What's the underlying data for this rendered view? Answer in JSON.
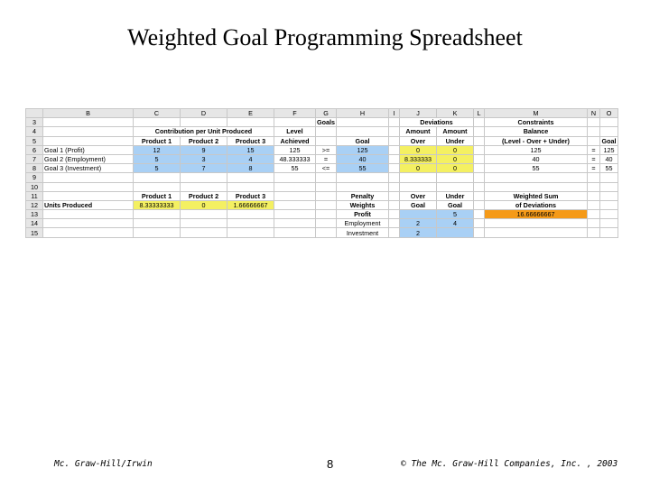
{
  "title": "Weighted Goal Programming Spreadsheet",
  "sheet": {
    "columns": [
      "",
      "B",
      "C",
      "D",
      "E",
      "F",
      "G",
      "H",
      "I",
      "J",
      "K",
      "L",
      "M",
      "N",
      "O"
    ],
    "rows": [
      [
        "3",
        "",
        "",
        "",
        "",
        "",
        "Goals",
        "",
        "",
        "Deviations",
        "",
        "",
        "Constraints",
        "",
        ""
      ],
      [
        "4",
        "",
        "",
        "Contribution per Unit Produced",
        "",
        "Level",
        "",
        "",
        "",
        "Amount",
        "Amount",
        "",
        "Balance",
        "",
        ""
      ],
      [
        "5",
        "",
        "Product 1",
        "Product 2",
        "Product 3",
        "Achieved",
        "",
        "Goal",
        "",
        "Over",
        "Under",
        "",
        "(Level - Over + Under)",
        "",
        "Goal"
      ],
      [
        "6",
        "Goal 1 (Profit)",
        "12",
        "9",
        "15",
        "125",
        ">=",
        "125",
        "",
        "0",
        "0",
        "",
        "125",
        "=",
        "125"
      ],
      [
        "7",
        "Goal 2 (Employment)",
        "5",
        "3",
        "4",
        "48.333333",
        "=",
        "40",
        "",
        "8.333333",
        "0",
        "",
        "40",
        "=",
        "40"
      ],
      [
        "8",
        "Goal 3 (Investment)",
        "5",
        "7",
        "8",
        "55",
        "<=",
        "55",
        "",
        "0",
        "0",
        "",
        "55",
        "=",
        "55"
      ],
      [
        "9",
        "",
        "",
        "",
        "",
        "",
        "",
        "",
        "",
        "",
        "",
        "",
        "",
        "",
        ""
      ],
      [
        "10",
        "",
        "",
        "",
        "",
        "",
        "",
        "",
        "",
        "",
        "",
        "",
        "",
        "",
        ""
      ],
      [
        "11",
        "",
        "Product 1",
        "Product 2",
        "Product 3",
        "",
        "",
        "Penalty",
        "",
        "Over",
        "Under",
        "",
        "Weighted Sum",
        "",
        ""
      ],
      [
        "12",
        "Units Produced",
        "8.33333333",
        "0",
        "1.66666667",
        "",
        "",
        "Weights",
        "",
        "Goal",
        "Goal",
        "",
        "of Deviations",
        "",
        ""
      ],
      [
        "13",
        "",
        "",
        "",
        "",
        "",
        "",
        "Profit",
        "",
        "",
        "5",
        "",
        "16.66666667",
        "",
        ""
      ],
      [
        "14",
        "",
        "",
        "",
        "",
        "",
        "",
        "Employment",
        "",
        "2",
        "4",
        "",
        "",
        "",
        ""
      ],
      [
        "15",
        "",
        "",
        "",
        "",
        "",
        "",
        "Investment",
        "",
        "2",
        "",
        "",
        "",
        "",
        ""
      ]
    ]
  },
  "footer": {
    "left": "Mc. Graw-Hill/Irwin",
    "page": "8",
    "right": "© The Mc. Graw-Hill Companies, Inc. , 2003"
  }
}
